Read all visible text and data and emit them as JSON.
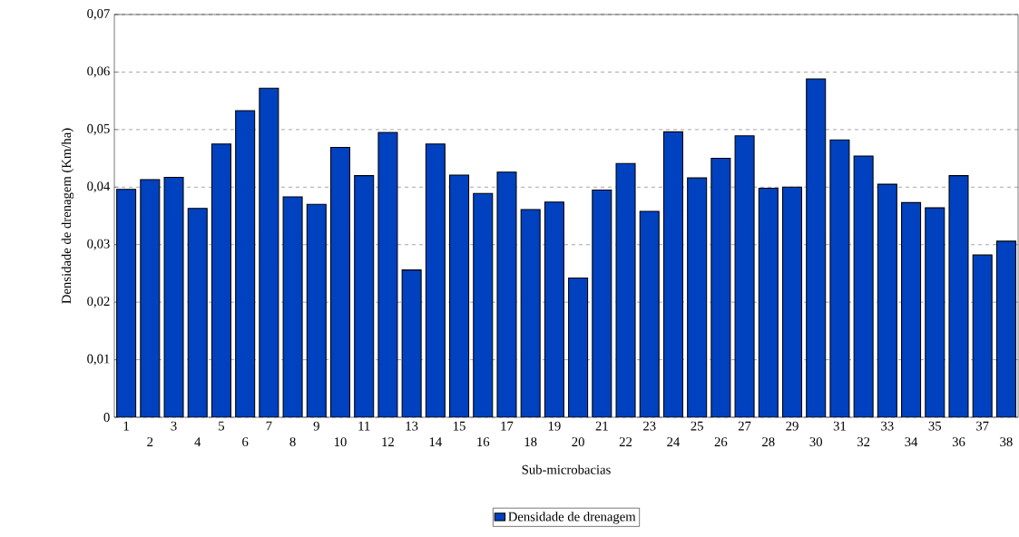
{
  "chart_data": {
    "type": "bar",
    "xlabel": "Sub-microbacias",
    "ylabel": "Densidade de drenagem (Km/ha)",
    "categories": [
      "1",
      "2",
      "3",
      "4",
      "5",
      "6",
      "7",
      "8",
      "9",
      "10",
      "11",
      "12",
      "13",
      "14",
      "15",
      "16",
      "17",
      "18",
      "19",
      "20",
      "21",
      "22",
      "23",
      "24",
      "25",
      "26",
      "27",
      "28",
      "29",
      "30",
      "31",
      "32",
      "33",
      "34",
      "35",
      "36",
      "37",
      "38"
    ],
    "series": [
      {
        "name": "Densidade de drenagem",
        "color": "#0041c0",
        "values": [
          0.0396,
          0.0413,
          0.0417,
          0.0363,
          0.0475,
          0.0533,
          0.0572,
          0.0383,
          0.037,
          0.0469,
          0.042,
          0.0495,
          0.0256,
          0.0475,
          0.0421,
          0.0389,
          0.0426,
          0.0361,
          0.0374,
          0.0242,
          0.0395,
          0.0441,
          0.0358,
          0.0496,
          0.0416,
          0.045,
          0.0489,
          0.0398,
          0.04,
          0.0588,
          0.0482,
          0.0454,
          0.0405,
          0.0373,
          0.0364,
          0.042,
          0.0282,
          0.0306
        ]
      }
    ],
    "ylim": [
      0,
      0.07
    ],
    "yticks": [
      {
        "value": 0,
        "label": "0"
      },
      {
        "value": 0.01,
        "label": "0,01"
      },
      {
        "value": 0.02,
        "label": "0,02"
      },
      {
        "value": 0.03,
        "label": "0,03"
      },
      {
        "value": 0.04,
        "label": "0,04"
      },
      {
        "value": 0.05,
        "label": "0,05"
      },
      {
        "value": 0.06,
        "label": "0,06"
      },
      {
        "value": 0.07,
        "label": "0,07"
      }
    ],
    "grid": "y",
    "line_style": "dashed",
    "legend": "bottom"
  }
}
